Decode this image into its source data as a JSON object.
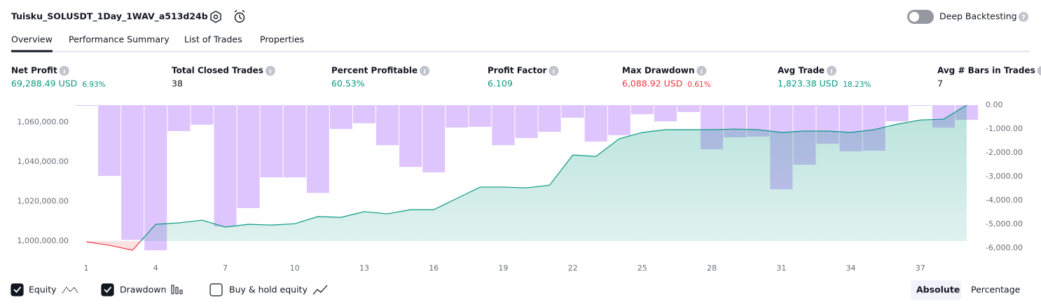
{
  "header": {
    "title": "Tuisku_SOLUSDT_1Day_1WAV_a513d24b",
    "toggle_label": "Deep Backtesting"
  },
  "tabs": [
    "Overview",
    "Performance Summary",
    "List of Trades",
    "Properties"
  ],
  "active_tab": 0,
  "metrics": [
    {
      "label": "Net Profit",
      "value": "69,288.49 USD",
      "percent": "6.93%",
      "color": "#089981"
    },
    {
      "label": "Total Closed Trades",
      "value": "38",
      "color": "#131722"
    },
    {
      "label": "Percent Profitable",
      "value": "60.53%",
      "color": "#089981"
    },
    {
      "label": "Profit Factor",
      "value": "6.109",
      "color": "#089981"
    },
    {
      "label": "Max Drawdown",
      "value": "6,088.92 USD",
      "percent": "0.61%",
      "color": "#f23645"
    },
    {
      "label": "Avg Trade",
      "value": "1,823.38 USD",
      "percent": "18.23%",
      "color": "#089981"
    },
    {
      "label": "Avg # Bars in Trades",
      "value": "7",
      "color": "#131722"
    }
  ],
  "chart_data": {
    "type": "line",
    "x": [
      1,
      2,
      3,
      4,
      5,
      6,
      7,
      8,
      9,
      10,
      11,
      12,
      13,
      14,
      15,
      16,
      17,
      18,
      19,
      20,
      21,
      22,
      23,
      24,
      25,
      26,
      27,
      28,
      29,
      30,
      31,
      32,
      33,
      34,
      35,
      36,
      37,
      38,
      39
    ],
    "xlim": [
      0.5,
      39.5
    ],
    "xticks": [
      1,
      4,
      7,
      10,
      13,
      16,
      19,
      22,
      25,
      28,
      31,
      34,
      37
    ],
    "ylim": [
      992570,
      1068700
    ],
    "yticks": [
      {
        "value": 1000000,
        "label": "1,000,000.00"
      },
      {
        "value": 1020000,
        "label": "1,020,000.00"
      },
      {
        "value": 1040000,
        "label": "1,040,000.00"
      },
      {
        "value": 1060000,
        "label": "1,060,000.00"
      }
    ],
    "y2lim": [
      -6320,
      0
    ],
    "y2ticks": [
      {
        "value": 0,
        "label": "0.00"
      },
      {
        "value": -1000,
        "label": "-1,000.00"
      },
      {
        "value": -2000,
        "label": "-2,000.00"
      },
      {
        "value": -3000,
        "label": "-3,000.00"
      },
      {
        "value": -4000,
        "label": "-4,000.00"
      },
      {
        "value": -5000,
        "label": "-5,000.00"
      },
      {
        "value": -6000,
        "label": "-6,000.00"
      }
    ],
    "series": [
      {
        "name": "Equity",
        "type": "line",
        "color": "#089981",
        "below_color": "#f23645",
        "visible": true,
        "values": [
          999650,
          997900,
          995400,
          1008500,
          1009200,
          1010600,
          1007100,
          1008500,
          1008100,
          1008800,
          1012400,
          1012000,
          1014900,
          1013800,
          1015900,
          1015900,
          1021600,
          1027300,
          1027300,
          1026900,
          1028300,
          1043500,
          1042800,
          1051700,
          1054900,
          1056300,
          1056300,
          1056300,
          1056600,
          1056300,
          1054900,
          1055600,
          1055600,
          1054900,
          1056300,
          1059100,
          1061200,
          1061600,
          1068700
        ]
      },
      {
        "name": "Drawdown",
        "type": "bar",
        "color": "#dfc5fd",
        "axis": "y2",
        "visible": true,
        "values": [
          -30,
          -2970,
          -5650,
          -6090,
          -1090,
          -820,
          -5090,
          -4320,
          -3030,
          -3030,
          -3680,
          -1000,
          -760,
          -1680,
          -2590,
          -2820,
          -940,
          -910,
          -1680,
          -1380,
          -1120,
          -530,
          -1530,
          -1260,
          -380,
          -680,
          -290,
          -1850,
          -1350,
          -1320,
          -3530,
          -2500,
          -1620,
          -1940,
          -1910,
          -680,
          -30,
          -940,
          -620
        ]
      }
    ]
  },
  "controls": {
    "buy_hold": "Buy & hold equity",
    "buy_hold_visible": false,
    "modes": [
      "Absolute",
      "Percentage"
    ],
    "active_mode": 0
  }
}
